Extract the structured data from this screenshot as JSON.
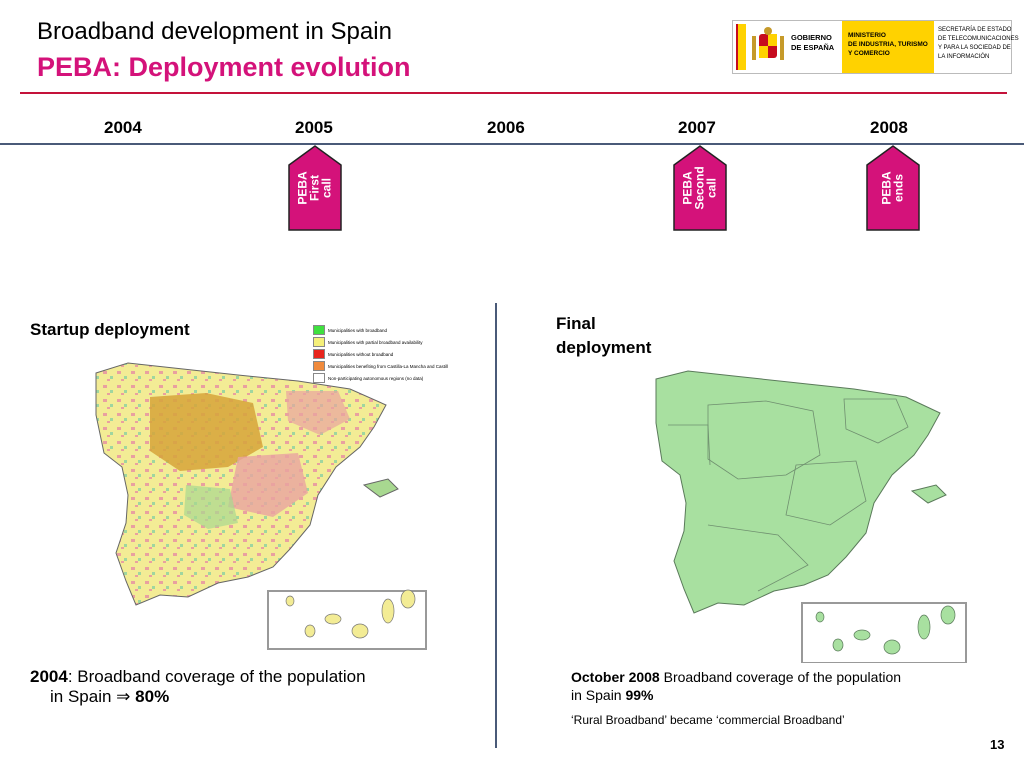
{
  "header": {
    "title": "Broadband development in Spain",
    "subtitle": "PEBA: Deployment evolution"
  },
  "logo": {
    "gov": "GOBIERNO\nDE ESPAÑA",
    "ministry": "MINISTERIO\nDE INDUSTRIA, TURISMO\nY COMERCIO",
    "secretariat": "SECRETARÍA DE ESTADO\nDE TELECOMUNICACIONES\nY PARA LA SOCIEDAD DE\nLA INFORMACIÓN"
  },
  "timeline": {
    "years": [
      "2004",
      "2005",
      "2006",
      "2007",
      "2008"
    ],
    "markers": [
      "PEBA\nFirst\ncall",
      "PEBA\nSecond\ncall",
      "PEBA\nends"
    ],
    "marker_color": "#d4127a"
  },
  "left": {
    "heading": "Startup deployment",
    "legend": [
      {
        "label": "Municipalities with broadband",
        "color": "#3fe03f"
      },
      {
        "label": "Municipalities with partial broadband availability",
        "color": "#f5f07a"
      },
      {
        "label": "Municipalities without broadband",
        "color": "#e8241c"
      },
      {
        "label": "Municipalities benefiting from Castilla-La Mancha and Castilla y León's own programmes",
        "color": "#f08a3c"
      },
      {
        "label": "Non-participating autonomous regions (no data)",
        "color": "#ffffff"
      }
    ],
    "caption_year": "2004",
    "caption_text": ": Broadband coverage of the population",
    "caption_text2": "in Spain ",
    "caption_arrow": "⇒",
    "caption_value": "80%"
  },
  "right": {
    "heading": "Final\ndeployment",
    "caption_date": "October 2008",
    "caption_text": " Broadband coverage of the population in Spain ",
    "caption_value": "99%",
    "caption_note": "‘Rural Broadband’ became ‘commercial Broadband’"
  },
  "page_number": "13"
}
